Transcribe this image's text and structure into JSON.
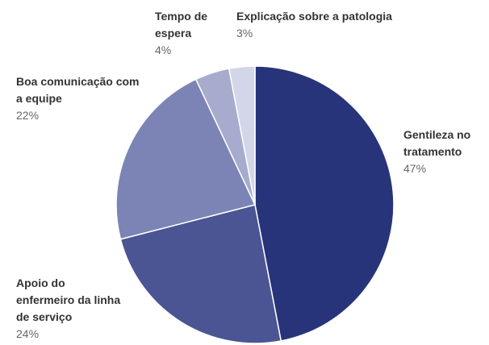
{
  "chart_data": {
    "type": "pie",
    "categories": [
      "Gentileza no tratamento",
      "Apoio do enfermeiro da linha de serviço",
      "Boa comunicação com a equipe",
      "Tempo de espera",
      "Explicação sobre a patologia"
    ],
    "values": [
      47,
      24,
      22,
      4,
      3
    ],
    "value_labels": [
      "47%",
      "24%",
      "22%",
      "4%",
      "3%"
    ],
    "colors": [
      "#283479",
      "#4b5594",
      "#7b84b4",
      "#a7acce",
      "#d3d6e8"
    ]
  }
}
